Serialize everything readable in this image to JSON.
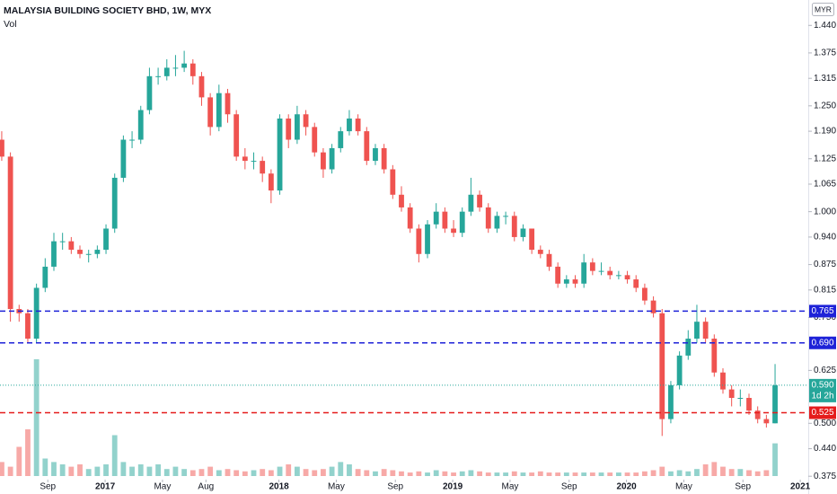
{
  "chart_data": {
    "type": "candlestick",
    "title": "MALAYSIA BUILDING SOCIETY BHD, 1W, MYX",
    "volume_label": "Vol",
    "currency": "MYR",
    "up_color": "#26a69a",
    "down_color": "#ef5350",
    "xlim": [
      2016.395,
      2021.046
    ],
    "xticks": [
      {
        "value": 2016.67,
        "label": "Sep"
      },
      2017,
      {
        "value": 2017.33,
        "label": "May"
      },
      {
        "value": 2017.58,
        "label": "Aug"
      },
      2018,
      {
        "value": 2018.33,
        "label": "May"
      },
      {
        "value": 2018.67,
        "label": "Sep"
      },
      2019,
      {
        "value": 2019.33,
        "label": "May"
      },
      {
        "value": 2019.67,
        "label": "Sep"
      },
      2020,
      {
        "value": 2020.33,
        "label": "May"
      },
      {
        "value": 2020.67,
        "label": "Sep"
      },
      2021
    ],
    "ylim": [
      0.333,
      1.5
    ],
    "yticks": [
      {
        "value": 1.44,
        "label": "1.440"
      },
      {
        "value": 1.375,
        "label": "1.375"
      },
      {
        "value": 1.315,
        "label": "1.315"
      },
      {
        "value": 1.25,
        "label": "1.250"
      },
      {
        "value": 1.19,
        "label": "1.190"
      },
      {
        "value": 1.125,
        "label": "1.125"
      },
      {
        "value": 1.065,
        "label": "1.065"
      },
      {
        "value": 1.0,
        "label": "1.000"
      },
      {
        "value": 0.94,
        "label": "0.940"
      },
      {
        "value": 0.875,
        "label": "0.875"
      },
      {
        "value": 0.815,
        "label": "0.815"
      },
      {
        "value": 0.75,
        "label": "0.750"
      },
      {
        "value": 0.625,
        "label": "0.625"
      },
      {
        "value": 0.5,
        "label": "0.500"
      },
      {
        "value": 0.44,
        "label": "0.440"
      },
      {
        "value": 0.375,
        "label": "0.375"
      }
    ],
    "vlim": [
      0,
      100
    ],
    "x": [
      2016.405,
      2016.455,
      2016.505,
      2016.555,
      2016.605,
      2016.655,
      2016.705,
      2016.755,
      2016.805,
      2016.855,
      2016.905,
      2016.955,
      2017.005,
      2017.055,
      2017.105,
      2017.155,
      2017.205,
      2017.255,
      2017.305,
      2017.355,
      2017.405,
      2017.455,
      2017.505,
      2017.555,
      2017.605,
      2017.655,
      2017.705,
      2017.755,
      2017.805,
      2017.855,
      2017.905,
      2017.955,
      2018.005,
      2018.055,
      2018.105,
      2018.155,
      2018.205,
      2018.255,
      2018.305,
      2018.355,
      2018.405,
      2018.455,
      2018.505,
      2018.555,
      2018.605,
      2018.655,
      2018.705,
      2018.755,
      2018.805,
      2018.855,
      2018.905,
      2018.955,
      2019.005,
      2019.055,
      2019.105,
      2019.155,
      2019.205,
      2019.255,
      2019.305,
      2019.355,
      2019.405,
      2019.455,
      2019.505,
      2019.555,
      2019.605,
      2019.655,
      2019.705,
      2019.755,
      2019.805,
      2019.855,
      2019.905,
      2019.955,
      2020.005,
      2020.055,
      2020.105,
      2020.155,
      2020.205,
      2020.255,
      2020.305,
      2020.355,
      2020.405,
      2020.455,
      2020.505,
      2020.555,
      2020.605,
      2020.655,
      2020.705,
      2020.755,
      2020.805,
      2020.855
    ],
    "open": [
      1.17,
      1.13,
      0.77,
      0.76,
      0.7,
      0.82,
      0.87,
      0.93,
      0.93,
      0.91,
      0.9,
      0.9,
      0.91,
      0.96,
      1.08,
      1.17,
      1.17,
      1.24,
      1.32,
      1.32,
      1.34,
      1.34,
      1.35,
      1.32,
      1.27,
      1.2,
      1.28,
      1.23,
      1.13,
      1.12,
      1.12,
      1.09,
      1.05,
      1.22,
      1.17,
      1.23,
      1.2,
      1.14,
      1.1,
      1.15,
      1.19,
      1.22,
      1.19,
      1.12,
      1.15,
      1.1,
      1.04,
      1.01,
      0.96,
      0.9,
      0.97,
      1.0,
      0.96,
      0.95,
      1.0,
      1.04,
      1.01,
      0.96,
      0.99,
      0.99,
      0.94,
      0.96,
      0.91,
      0.9,
      0.87,
      0.83,
      0.84,
      0.83,
      0.88,
      0.86,
      0.86,
      0.85,
      0.85,
      0.84,
      0.82,
      0.79,
      0.76,
      0.51,
      0.59,
      0.66,
      0.7,
      0.74,
      0.7,
      0.62,
      0.58,
      0.56,
      0.56,
      0.53,
      0.51,
      0.5
    ],
    "high": [
      1.19,
      1.14,
      0.78,
      0.77,
      0.83,
      0.89,
      0.95,
      0.95,
      0.94,
      0.92,
      0.91,
      0.92,
      0.97,
      1.09,
      1.18,
      1.19,
      1.25,
      1.34,
      1.34,
      1.36,
      1.37,
      1.38,
      1.36,
      1.33,
      1.28,
      1.3,
      1.29,
      1.24,
      1.15,
      1.14,
      1.13,
      1.1,
      1.23,
      1.23,
      1.25,
      1.24,
      1.21,
      1.15,
      1.16,
      1.2,
      1.24,
      1.23,
      1.2,
      1.16,
      1.16,
      1.11,
      1.06,
      1.02,
      0.97,
      0.98,
      1.02,
      1.01,
      0.98,
      1.01,
      1.08,
      1.05,
      1.02,
      1.0,
      1.0,
      1.0,
      0.97,
      0.96,
      0.92,
      0.91,
      0.88,
      0.85,
      0.85,
      0.9,
      0.89,
      0.88,
      0.87,
      0.86,
      0.86,
      0.85,
      0.83,
      0.8,
      0.77,
      0.6,
      0.67,
      0.72,
      0.78,
      0.75,
      0.71,
      0.63,
      0.59,
      0.58,
      0.57,
      0.54,
      0.52,
      0.64
    ],
    "low": [
      1.12,
      0.74,
      0.74,
      0.69,
      0.69,
      0.81,
      0.86,
      0.91,
      0.9,
      0.89,
      0.88,
      0.89,
      0.9,
      0.95,
      1.07,
      1.15,
      1.16,
      1.23,
      1.3,
      1.31,
      1.32,
      1.33,
      1.3,
      1.25,
      1.18,
      1.19,
      1.21,
      1.12,
      1.1,
      1.1,
      1.07,
      1.02,
      1.04,
      1.15,
      1.16,
      1.18,
      1.13,
      1.08,
      1.09,
      1.14,
      1.18,
      1.18,
      1.11,
      1.11,
      1.09,
      1.03,
      1.0,
      0.95,
      0.88,
      0.89,
      0.96,
      0.95,
      0.94,
      0.94,
      0.99,
      1.0,
      0.95,
      0.95,
      0.97,
      0.93,
      0.93,
      0.9,
      0.89,
      0.86,
      0.82,
      0.82,
      0.82,
      0.82,
      0.85,
      0.85,
      0.84,
      0.84,
      0.83,
      0.81,
      0.78,
      0.75,
      0.47,
      0.5,
      0.58,
      0.65,
      0.69,
      0.69,
      0.61,
      0.57,
      0.54,
      0.54,
      0.52,
      0.5,
      0.49,
      0.5
    ],
    "close": [
      1.13,
      0.77,
      0.76,
      0.7,
      0.82,
      0.87,
      0.93,
      0.93,
      0.91,
      0.9,
      0.9,
      0.91,
      0.96,
      1.08,
      1.17,
      1.17,
      1.24,
      1.32,
      1.32,
      1.34,
      1.34,
      1.35,
      1.32,
      1.27,
      1.2,
      1.28,
      1.23,
      1.13,
      1.12,
      1.12,
      1.09,
      1.05,
      1.22,
      1.17,
      1.23,
      1.2,
      1.14,
      1.1,
      1.15,
      1.19,
      1.22,
      1.19,
      1.12,
      1.15,
      1.1,
      1.04,
      1.01,
      0.96,
      0.9,
      0.97,
      1.0,
      0.96,
      0.95,
      1.0,
      1.04,
      1.01,
      0.96,
      0.99,
      0.99,
      0.94,
      0.96,
      0.91,
      0.9,
      0.87,
      0.83,
      0.84,
      0.83,
      0.88,
      0.86,
      0.86,
      0.85,
      0.85,
      0.84,
      0.82,
      0.79,
      0.76,
      0.51,
      0.59,
      0.66,
      0.7,
      0.74,
      0.7,
      0.62,
      0.58,
      0.56,
      0.56,
      0.53,
      0.51,
      0.5,
      0.59
    ],
    "volume": [
      12,
      8,
      25,
      40,
      100,
      15,
      12,
      10,
      8,
      10,
      6,
      8,
      10,
      35,
      12,
      8,
      10,
      8,
      10,
      6,
      8,
      6,
      5,
      6,
      8,
      5,
      6,
      5,
      4,
      5,
      6,
      5,
      8,
      10,
      8,
      6,
      5,
      6,
      8,
      12,
      10,
      6,
      5,
      4,
      6,
      5,
      4,
      3,
      4,
      3,
      5,
      4,
      3,
      4,
      5,
      4,
      3,
      3,
      3,
      4,
      3,
      3,
      4,
      3,
      3,
      3,
      3,
      3,
      3,
      3,
      3,
      3,
      3,
      3,
      4,
      5,
      8,
      4,
      5,
      4,
      6,
      10,
      12,
      8,
      6,
      6,
      5,
      4,
      5,
      28
    ],
    "levels": [
      {
        "value": 0.765,
        "label": "0.765",
        "color": "#1e22d8"
      },
      {
        "value": 0.69,
        "label": "0.690",
        "color": "#1e22d8"
      },
      {
        "value": 0.525,
        "label": "0.525",
        "color": "#e51c1c"
      }
    ],
    "last_price": {
      "value": 0.59,
      "label": "0.590",
      "countdown": "1d 2h",
      "color": "#26a69a"
    }
  }
}
